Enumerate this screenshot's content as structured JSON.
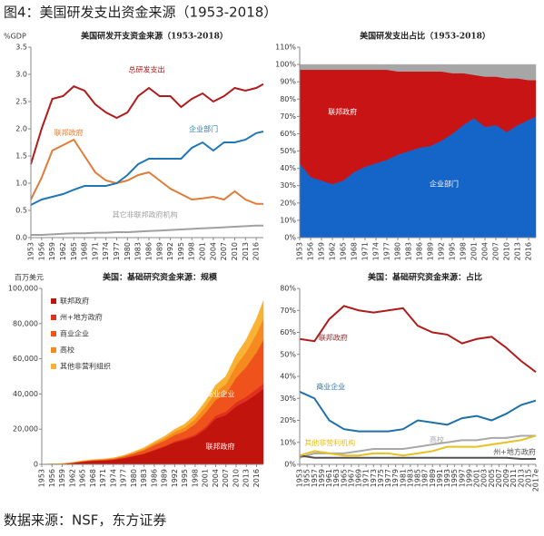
{
  "title": "图4：美国研发支出资金来源（1953-2018）",
  "source": "数据来源：NSF，东方证券",
  "chart_data": [
    {
      "type": "line",
      "title": "美国研发开支资金来源（1953-2018）",
      "y_unit": "%GDP",
      "x": [
        1953,
        1956,
        1959,
        1962,
        1965,
        1968,
        1971,
        1974,
        1977,
        1980,
        1983,
        1986,
        1989,
        1992,
        1995,
        1998,
        2001,
        2004,
        2007,
        2010,
        2013,
        2016,
        2018
      ],
      "xlim": [
        1953,
        2018
      ],
      "xticks": [
        1953,
        1956,
        1959,
        1962,
        1965,
        1968,
        1971,
        1974,
        1977,
        1980,
        1983,
        1986,
        1989,
        1992,
        1995,
        1998,
        2001,
        2004,
        2007,
        2010,
        2013,
        2016
      ],
      "ylim": [
        0,
        3.5
      ],
      "yticks": [
        {
          "value": 0,
          "label": "0.0"
        },
        0.5,
        {
          "value": 1,
          "label": "1.0"
        },
        1.5,
        {
          "value": 2,
          "label": "2.0"
        },
        2.5,
        {
          "value": 3,
          "label": "3.0"
        },
        3.5
      ],
      "series": [
        {
          "name": "总研发支出",
          "color": "#b01c1c",
          "values": [
            1.35,
            2.0,
            2.55,
            2.6,
            2.78,
            2.7,
            2.45,
            2.3,
            2.2,
            2.3,
            2.6,
            2.75,
            2.6,
            2.6,
            2.4,
            2.55,
            2.65,
            2.5,
            2.6,
            2.75,
            2.7,
            2.75,
            2.82
          ]
        },
        {
          "name": "联邦政府",
          "color": "#e07b39",
          "values": [
            0.7,
            1.1,
            1.6,
            1.7,
            1.8,
            1.5,
            1.2,
            1.05,
            1.0,
            1.05,
            1.15,
            1.2,
            1.05,
            0.9,
            0.8,
            0.7,
            0.72,
            0.75,
            0.7,
            0.85,
            0.7,
            0.62,
            0.62
          ]
        },
        {
          "name": "企业部门",
          "color": "#1f77b4",
          "values": [
            0.6,
            0.7,
            0.75,
            0.8,
            0.88,
            0.95,
            0.95,
            0.95,
            1.0,
            1.15,
            1.35,
            1.45,
            1.45,
            1.45,
            1.45,
            1.65,
            1.75,
            1.6,
            1.75,
            1.75,
            1.8,
            1.92,
            1.95
          ]
        },
        {
          "name": "其它非联邦政府机构",
          "color": "#a0a0a0",
          "values": [
            0.05,
            0.05,
            0.06,
            0.07,
            0.08,
            0.08,
            0.09,
            0.09,
            0.1,
            0.1,
            0.11,
            0.12,
            0.13,
            0.14,
            0.15,
            0.16,
            0.17,
            0.18,
            0.19,
            0.2,
            0.21,
            0.22,
            0.22
          ]
        }
      ]
    },
    {
      "type": "area",
      "stacked": true,
      "title": "美国研发支出占比（1953-2018）",
      "x": [
        1953,
        1956,
        1959,
        1962,
        1965,
        1968,
        1971,
        1974,
        1977,
        1980,
        1983,
        1986,
        1989,
        1992,
        1995,
        1998,
        2001,
        2004,
        2007,
        2010,
        2013,
        2016,
        2018
      ],
      "xlim": [
        1953,
        2018
      ],
      "xticks": [
        1953,
        1956,
        1959,
        1962,
        1965,
        1968,
        1971,
        1974,
        1977,
        1980,
        1983,
        1986,
        1989,
        1992,
        1995,
        1998,
        2001,
        2004,
        2007,
        2010,
        2013,
        2016
      ],
      "ylim": [
        0,
        110
      ],
      "yticks": [
        {
          "value": 0,
          "label": "0%"
        },
        {
          "value": 10,
          "label": "10%"
        },
        {
          "value": 20,
          "label": "20%"
        },
        {
          "value": 30,
          "label": "30%"
        },
        {
          "value": 40,
          "label": "40%"
        },
        {
          "value": 50,
          "label": "50%"
        },
        {
          "value": 60,
          "label": "60%"
        },
        {
          "value": 70,
          "label": "70%"
        },
        {
          "value": 80,
          "label": "80%"
        },
        {
          "value": 90,
          "label": "90%"
        },
        {
          "value": 100,
          "label": "100%"
        },
        {
          "value": 110,
          "label": "110%"
        }
      ],
      "series": [
        {
          "name": "企业部门",
          "color": "#1565c8",
          "values": [
            43,
            35,
            33,
            31,
            33,
            38,
            41,
            43,
            45,
            48,
            50,
            52,
            53,
            56,
            60,
            65,
            69,
            64,
            65,
            61,
            65,
            68,
            70
          ]
        },
        {
          "name": "联邦政府",
          "color": "#c81414",
          "values": [
            54,
            62,
            64,
            66,
            64,
            59,
            56,
            54,
            52,
            48,
            46,
            44,
            43,
            40,
            35,
            30,
            25,
            29,
            28,
            31,
            27,
            23,
            21
          ]
        },
        {
          "color": "#a6a6a6",
          "values": [
            3,
            3,
            3,
            3,
            3,
            3,
            3,
            3,
            3,
            4,
            4,
            4,
            4,
            4,
            5,
            5,
            6,
            7,
            7,
            8,
            8,
            9,
            9
          ]
        }
      ]
    },
    {
      "type": "area",
      "stacked": true,
      "title": "美国：基础研究资金来源：规模",
      "y_unit": "百万美元",
      "x": [
        1953,
        1956,
        1959,
        1962,
        1965,
        1968,
        1971,
        1974,
        1977,
        1980,
        1983,
        1986,
        1989,
        1992,
        1995,
        1998,
        2001,
        2004,
        2007,
        2010,
        2013,
        2016,
        2018
      ],
      "xlim": [
        1953,
        2018
      ],
      "xticks": [
        1953,
        1956,
        1959,
        1962,
        1965,
        1968,
        1971,
        1974,
        1977,
        1980,
        1983,
        1986,
        1989,
        1992,
        1995,
        1998,
        2001,
        2004,
        2007,
        2010,
        2013,
        2016
      ],
      "ylim": [
        0,
        100000
      ],
      "yticks": [
        0,
        {
          "value": 20000,
          "label": "20,000"
        },
        {
          "value": 40000,
          "label": "40,000"
        },
        {
          "value": 60000,
          "label": "60,000"
        },
        {
          "value": 80000,
          "label": "80,000"
        },
        {
          "value": 100000,
          "label": "100,000"
        }
      ],
      "legend": "top-left",
      "series": [
        {
          "name": "联邦政府",
          "color": "#c0140c",
          "values": [
            50,
            100,
            300,
            800,
            1500,
            2000,
            2200,
            2600,
            3500,
            4700,
            6000,
            8000,
            10000,
            12500,
            14000,
            16000,
            20000,
            26000,
            28000,
            33000,
            36000,
            40000,
            43000
          ]
        },
        {
          "name": "州+地方政府",
          "color": "#e03020",
          "values": [
            10,
            20,
            30,
            50,
            80,
            100,
            120,
            150,
            200,
            250,
            300,
            400,
            500,
            700,
            900,
            1000,
            1300,
            1700,
            2000,
            2300,
            2500,
            2800,
            3000
          ]
        },
        {
          "name": "商业企业",
          "color": "#f0521c",
          "values": [
            30,
            60,
            100,
            150,
            250,
            300,
            350,
            450,
            700,
            1200,
            1800,
            2500,
            3000,
            3500,
            4000,
            6000,
            8000,
            9000,
            10000,
            14000,
            17000,
            21000,
            25000
          ]
        },
        {
          "name": "高校",
          "color": "#f58a1f",
          "values": [
            10,
            20,
            30,
            50,
            100,
            150,
            200,
            250,
            350,
            500,
            700,
            1000,
            1300,
            1700,
            2200,
            2800,
            3500,
            4500,
            5500,
            7000,
            8500,
            10500,
            12000
          ]
        },
        {
          "name": "其他非营利组织",
          "color": "#f9b233",
          "values": [
            20,
            30,
            50,
            80,
            120,
            150,
            200,
            250,
            350,
            500,
            700,
            900,
            1100,
            1500,
            1900,
            2400,
            3000,
            3800,
            4500,
            5800,
            7000,
            8500,
            10000
          ]
        }
      ]
    },
    {
      "type": "line",
      "title": "美国：基础研究资金来源：占比",
      "x": [
        1953,
        1957,
        1961,
        1965,
        1969,
        1973,
        1977,
        1981,
        1985,
        1989,
        1993,
        1997,
        2001,
        2005,
        2009,
        2013,
        2017
      ],
      "xlim": [
        1953,
        2017
      ],
      "xticks": [
        1953,
        1955,
        1957,
        1959,
        1961,
        1963,
        1965,
        1967,
        1969,
        1971,
        1973,
        1975,
        1977,
        1979,
        1981,
        1983,
        1985,
        1987,
        1989,
        1991,
        1993,
        1995,
        1997,
        1999,
        2001,
        2003,
        2005,
        2007,
        2009,
        2011,
        2013,
        2015,
        {
          "value": 2017,
          "label": "2017e"
        }
      ],
      "ylim": [
        0,
        80
      ],
      "yticks": [
        {
          "value": 0,
          "label": "0%"
        },
        {
          "value": 10,
          "label": "10%"
        },
        {
          "value": 20,
          "label": "20%"
        },
        {
          "value": 30,
          "label": "30%"
        },
        {
          "value": 40,
          "label": "40%"
        },
        {
          "value": 50,
          "label": "50%"
        },
        {
          "value": 60,
          "label": "60%"
        },
        {
          "value": 70,
          "label": "70%"
        },
        {
          "value": 80,
          "label": "80%"
        }
      ],
      "series": [
        {
          "name": "联邦政府",
          "color": "#b01c1c",
          "values": [
            57,
            56,
            66,
            72,
            70,
            69,
            70,
            71,
            63,
            60,
            59,
            55,
            57,
            58,
            53,
            47,
            42
          ]
        },
        {
          "name": "商业企业",
          "color": "#1f6fa8",
          "values": [
            33,
            30,
            20,
            16,
            15,
            15,
            15,
            16,
            20,
            19,
            18,
            21,
            22,
            20,
            23,
            27,
            29
          ]
        },
        {
          "name": "高校",
          "color": "#a8a8a8",
          "values": [
            3,
            5,
            5,
            5,
            6,
            7,
            7,
            7,
            8,
            9,
            10,
            11,
            11,
            12,
            12,
            13,
            13
          ]
        },
        {
          "name": "州+地方政府",
          "color": "#505050",
          "values": [
            4,
            3,
            3,
            3,
            3,
            3,
            3,
            3,
            3,
            3,
            3,
            3,
            3,
            3,
            3,
            2.5,
            2.5
          ]
        },
        {
          "name": "其他非营利机构",
          "color": "#e8c020",
          "values": [
            4,
            6,
            5,
            4,
            4,
            5,
            5,
            4,
            5,
            6,
            8,
            8,
            8,
            9,
            10,
            11,
            13
          ]
        }
      ]
    }
  ]
}
